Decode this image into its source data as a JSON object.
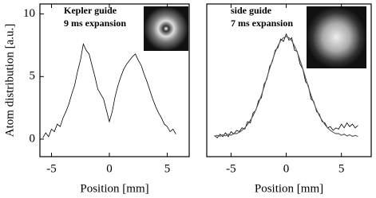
{
  "chart_data": [
    {
      "type": "line",
      "ylabel": "Atom distribution [a.u.]",
      "xlabel": "Position  [mm]",
      "annotations": [
        "Kepler guide",
        "9 ms expansion"
      ],
      "xlim": [
        -6.0,
        6.9
      ],
      "ylim": [
        -1.4,
        10.8
      ],
      "xticks": [
        -5,
        0,
        5
      ],
      "yticks": [
        0,
        5,
        10
      ],
      "x": [
        -5.75,
        -5.5,
        -5.25,
        -5,
        -4.75,
        -4.5,
        -4.25,
        -4,
        -3.75,
        -3.5,
        -3.25,
        -3,
        -2.75,
        -2.5,
        -2.25,
        -2,
        -1.75,
        -1.5,
        -1.25,
        -1,
        -0.75,
        -0.5,
        -0.25,
        0,
        0.25,
        0.5,
        0.75,
        1,
        1.25,
        1.5,
        1.75,
        2,
        2.25,
        2.5,
        2.75,
        3,
        3.25,
        3.5,
        3.75,
        4,
        4.25,
        4.5,
        4.75,
        5,
        5.25,
        5.5,
        5.75
      ],
      "series": [
        {
          "color": "#000000",
          "values": [
            0.1,
            0.5,
            0.2,
            0.8,
            0.6,
            1.2,
            1.0,
            1.7,
            2.2,
            2.8,
            3.6,
            4.3,
            5.4,
            6.3,
            7.6,
            7.1,
            6.8,
            5.9,
            5.0,
            4.0,
            3.6,
            3.2,
            2.3,
            1.4,
            2.2,
            3.4,
            4.3,
            5.0,
            5.6,
            6.0,
            6.3,
            6.6,
            6.8,
            6.3,
            5.9,
            5.2,
            4.6,
            3.9,
            3.2,
            2.6,
            2.1,
            1.7,
            1.2,
            1.0,
            0.6,
            0.8,
            0.4
          ]
        }
      ]
    },
    {
      "type": "line",
      "xlabel": "Position  [mm]",
      "annotations": [
        "side guide",
        "7 ms expansion"
      ],
      "xlim": [
        -7.2,
        7.7
      ],
      "ylim": [
        -1.4,
        10.8
      ],
      "xticks": [
        -5,
        0,
        5
      ],
      "x": [
        -6.5,
        -6.25,
        -6,
        -5.75,
        -5.5,
        -5.25,
        -5,
        -4.75,
        -4.5,
        -4.25,
        -4,
        -3.75,
        -3.5,
        -3.25,
        -3,
        -2.75,
        -2.5,
        -2.25,
        -2,
        -1.75,
        -1.5,
        -1.25,
        -1,
        -0.75,
        -0.5,
        -0.25,
        0,
        0.25,
        0.5,
        0.75,
        1,
        1.25,
        1.5,
        1.75,
        2,
        2.25,
        2.5,
        2.75,
        3,
        3.25,
        3.5,
        3.75,
        4,
        4.25,
        4.5,
        4.75,
        5,
        5.25,
        5.5,
        5.75,
        6,
        6.25,
        6.5
      ],
      "series": [
        {
          "color": "#000000",
          "values": [
            0.3,
            0.1,
            0.4,
            0.2,
            0.5,
            0.2,
            0.6,
            0.4,
            0.7,
            0.6,
            0.9,
            0.8,
            1.4,
            1.3,
            2.1,
            2.3,
            3.1,
            3.3,
            4.4,
            4.8,
            5.8,
            6.2,
            7.1,
            7.3,
            8.0,
            7.8,
            8.4,
            7.9,
            8.1,
            7.1,
            7.0,
            6.0,
            5.6,
            4.6,
            4.3,
            3.2,
            3.0,
            2.2,
            2.0,
            1.4,
            1.3,
            0.9,
            1.0,
            0.7,
            0.9,
            0.8,
            1.2,
            0.9,
            1.3,
            1.0,
            1.2,
            0.9,
            1.1
          ]
        },
        {
          "color": "#555555",
          "values": [
            0.21,
            0.3,
            0.22,
            0.35,
            0.25,
            0.4,
            0.31,
            0.45,
            0.44,
            0.55,
            0.7,
            0.9,
            1.17,
            1.5,
            1.88,
            2.35,
            2.9,
            3.5,
            4.19,
            4.9,
            5.63,
            6.3,
            6.96,
            7.45,
            7.87,
            8.1,
            8.2,
            8.1,
            7.87,
            7.45,
            6.96,
            6.3,
            5.63,
            4.9,
            4.19,
            3.5,
            2.9,
            2.35,
            1.88,
            1.5,
            1.17,
            0.9,
            0.7,
            0.55,
            0.44,
            0.45,
            0.31,
            0.4,
            0.25,
            0.35,
            0.22,
            0.3,
            0.21
          ]
        }
      ]
    }
  ]
}
